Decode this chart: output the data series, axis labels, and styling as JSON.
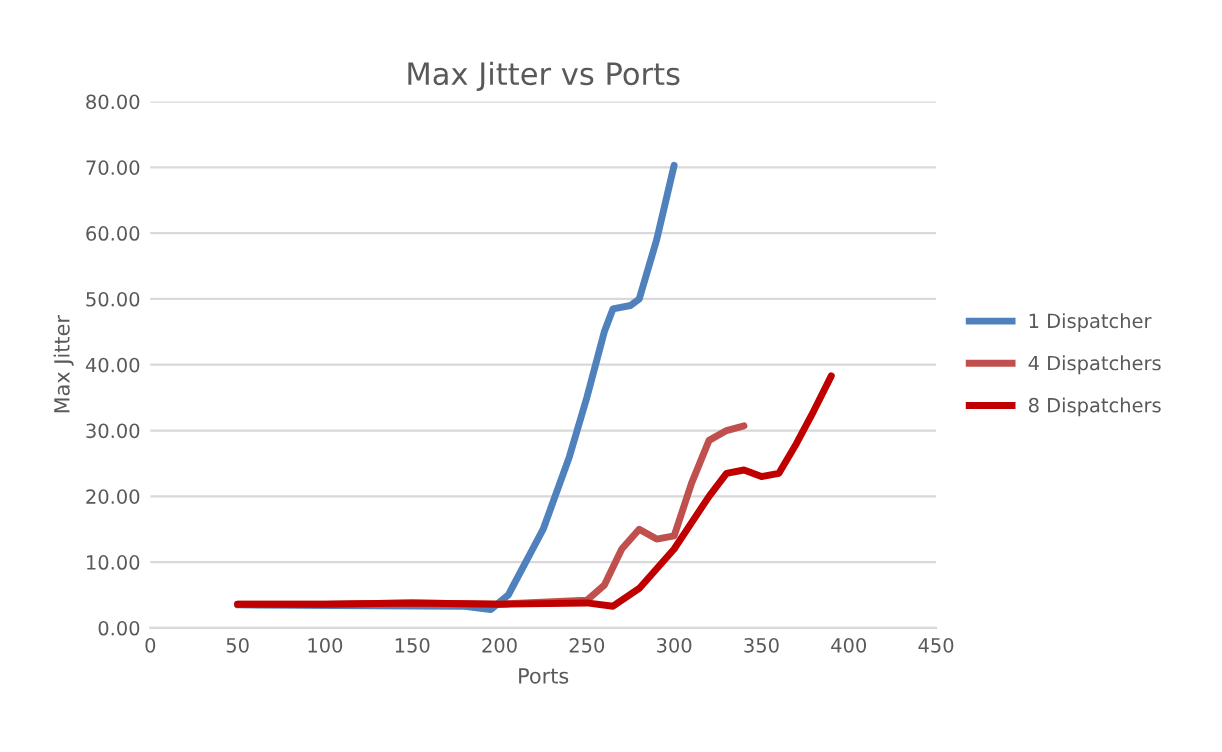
{
  "chart_data": {
    "type": "line",
    "title": "Max Jitter vs Ports",
    "xlabel": "Ports",
    "ylabel": "Max Jitter",
    "xlim": [
      0,
      450
    ],
    "xticks": [
      0,
      50,
      100,
      150,
      200,
      250,
      300,
      350,
      400,
      450
    ],
    "ylim": [
      0,
      80
    ],
    "yticks": [
      {
        "value": 0,
        "label": "0.00"
      },
      {
        "value": 10,
        "label": "10.00"
      },
      {
        "value": 20,
        "label": "20.00"
      },
      {
        "value": 30,
        "label": "30.00"
      },
      {
        "value": 40,
        "label": "40.00"
      },
      {
        "value": 50,
        "label": "50.00"
      },
      {
        "value": 60,
        "label": "60.00"
      },
      {
        "value": 70,
        "label": "70.00"
      },
      {
        "value": 80,
        "label": "80.00"
      }
    ],
    "grid": "y",
    "legend": "right",
    "marker": "none",
    "line_style": "solid",
    "series": [
      {
        "name": "1 Dispatcher",
        "color": "#4f81bd",
        "x": [
          50,
          180,
          195,
          205,
          215,
          225,
          240,
          250,
          260,
          265,
          275,
          280,
          290,
          300
        ],
        "values": [
          3.5,
          3.3,
          2.8,
          5,
          10,
          15,
          26,
          35,
          45,
          48.5,
          49,
          50,
          59,
          70.3
        ]
      },
      {
        "name": "4 Dispatchers",
        "color": "#c0504d",
        "x": [
          50,
          100,
          150,
          200,
          250,
          260,
          270,
          280,
          290,
          300,
          310,
          320,
          330,
          340
        ],
        "values": [
          3.6,
          3.6,
          3.8,
          3.6,
          4.2,
          6.5,
          12,
          15,
          13.5,
          14,
          22,
          28.5,
          30,
          30.7
        ]
      },
      {
        "name": "8 Dispatchers",
        "color": "#c00000",
        "x": [
          50,
          100,
          150,
          200,
          250,
          265,
          280,
          290,
          300,
          310,
          320,
          330,
          340,
          350,
          360,
          370,
          380,
          390
        ],
        "values": [
          3.6,
          3.6,
          3.8,
          3.6,
          3.8,
          3.3,
          6,
          9,
          12,
          16,
          20,
          23.5,
          24,
          23,
          23.5,
          28,
          33,
          38.3
        ]
      }
    ]
  }
}
